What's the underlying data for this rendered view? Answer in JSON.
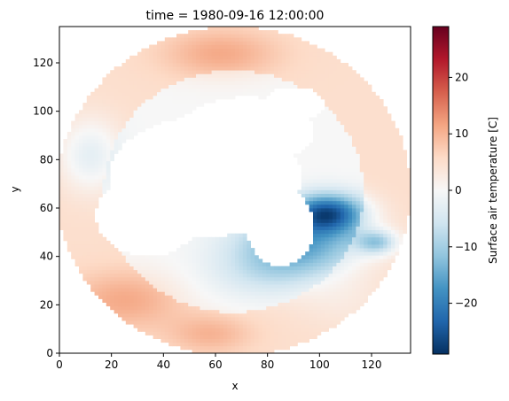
{
  "chart_data": {
    "type": "heatmap",
    "title": "time = 1980-09-16 12:00:00",
    "xlabel": "x",
    "ylabel": "y",
    "xlim": [
      0,
      135
    ],
    "ylim": [
      0,
      135
    ],
    "x_ticks": [
      0,
      20,
      40,
      60,
      80,
      100,
      120
    ],
    "y_ticks": [
      0,
      20,
      40,
      60,
      80,
      100,
      120
    ],
    "colorbar": {
      "label": "Surface air temperature [C]",
      "vmin": -29,
      "vmax": 29,
      "ticks": [
        -20,
        -10,
        0,
        10,
        20
      ],
      "colormap": "RdBu_r"
    },
    "grid": false,
    "legend": "none",
    "missing_color": "#ffffff",
    "field_regions": [
      {
        "region": "outer ring warm",
        "value": 5
      },
      {
        "region": "top center warm",
        "value": 8
      },
      {
        "region": "inner ring near zero",
        "value": 0
      },
      {
        "region": "left side cool",
        "value": -4
      },
      {
        "region": "bottom-left warm",
        "value": 9
      },
      {
        "region": "bottom center warm",
        "value": 8
      },
      {
        "region": "bottom-right near zero",
        "value": 2
      },
      {
        "region": "lower-middle cool",
        "value": -5
      },
      {
        "region": "right cold core",
        "value": -24
      },
      {
        "region": "right cold tongue",
        "value": -15
      },
      {
        "region": "center no data",
        "value": null
      }
    ]
  }
}
